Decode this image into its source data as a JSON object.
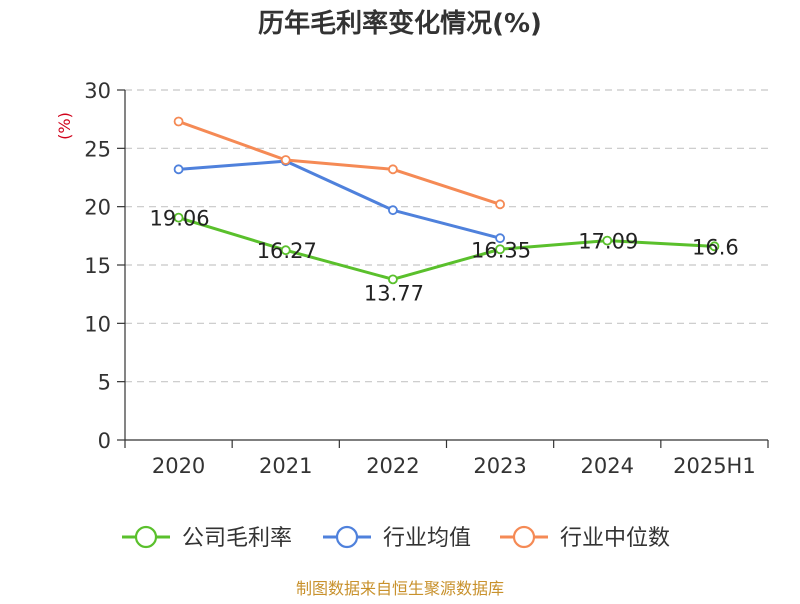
{
  "chart_data": {
    "type": "line",
    "title": "历年毛利率变化情况(%)",
    "ylabel": "(%)",
    "xlabel": "",
    "categories": [
      "2020",
      "2021",
      "2022",
      "2023",
      "2024",
      "2025H1"
    ],
    "ylim": [
      0,
      30
    ],
    "yticks": [
      0,
      5,
      10,
      15,
      20,
      25,
      30
    ],
    "grid": true,
    "legend_position": "bottom",
    "series": [
      {
        "name": "公司毛利率",
        "color": "#5ac02c",
        "values": [
          19.06,
          16.27,
          13.77,
          16.35,
          17.09,
          16.6
        ],
        "labels": [
          "19.06",
          "16.27",
          "13.77",
          "16.35",
          "17.09",
          "16.6"
        ]
      },
      {
        "name": "行业均值",
        "color": "#4f81dc",
        "values": [
          23.2,
          23.9,
          19.7,
          17.3,
          null,
          null
        ]
      },
      {
        "name": "行业中位数",
        "color": "#f58a55",
        "values": [
          27.3,
          24.0,
          23.2,
          20.2,
          null,
          null
        ]
      }
    ]
  },
  "colors": {
    "axis": "#333333",
    "grid": "#c8c8c8",
    "ylabel": "#d0021b",
    "source": "#c8912c"
  },
  "source_text": "制图数据来自恒生聚源数据库"
}
